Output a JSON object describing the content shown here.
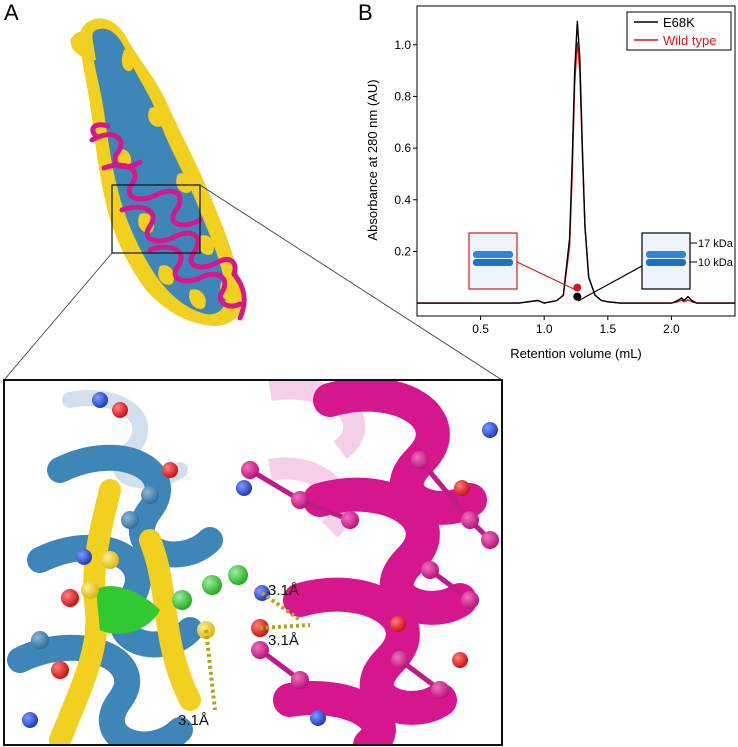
{
  "panels": {
    "a": "A",
    "b": "B"
  },
  "structure_colors": {
    "surface_blue": "#3f86b8",
    "surface_yellow": "#f2d020",
    "helix_magenta": "#d6168c",
    "highlight_green": "#32c832",
    "oxygen_red": "#e01a1a",
    "nitrogen_blue": "#2244cc"
  },
  "distances": [
    "3.1Å",
    "3.1Å",
    "3.1Å"
  ],
  "gel_labels": {
    "upper": "17 kDa",
    "lower": "10 kDa"
  },
  "chart_data": {
    "type": "line",
    "xlabel": "Retention volume (mL)",
    "ylabel": "Absorbance at 280 nm (AU)",
    "xlim": [
      0.0,
      2.5
    ],
    "ylim": [
      -0.05,
      1.15
    ],
    "xticks": [
      "0.5",
      "1.0",
      "1.5",
      "2.0"
    ],
    "xtick_values": [
      0.5,
      1.0,
      1.5,
      2.0
    ],
    "yticks": [
      "0.2",
      "0.4",
      "0.6",
      "0.8",
      "1.0"
    ],
    "ytick_values": [
      0.2,
      0.4,
      0.6,
      0.8,
      1.0
    ],
    "legend_position": "top-right",
    "series": [
      {
        "name": "E68K",
        "color": "#000000",
        "x": [
          0.0,
          0.8,
          0.95,
          1.0,
          1.05,
          1.1,
          1.15,
          1.2,
          1.22,
          1.24,
          1.26,
          1.28,
          1.3,
          1.32,
          1.35,
          1.4,
          1.45,
          1.5,
          1.6,
          1.8,
          2.0,
          2.05,
          2.08,
          2.1,
          2.13,
          2.16,
          2.2,
          2.5
        ],
        "y": [
          0.0,
          0.0,
          0.01,
          0.0,
          0.005,
          0.01,
          0.03,
          0.25,
          0.55,
          0.9,
          1.09,
          0.95,
          0.6,
          0.3,
          0.1,
          0.03,
          0.01,
          0.005,
          0.0,
          0.0,
          0.0,
          0.01,
          0.02,
          0.01,
          0.025,
          0.01,
          0.0,
          0.0
        ]
      },
      {
        "name": "Wild type",
        "color": "#d41a1a",
        "x": [
          0.0,
          0.8,
          0.95,
          1.0,
          1.05,
          1.1,
          1.15,
          1.2,
          1.22,
          1.24,
          1.26,
          1.28,
          1.3,
          1.32,
          1.35,
          1.4,
          1.45,
          1.5,
          1.6,
          1.8,
          2.0,
          2.05,
          2.08,
          2.1,
          2.13,
          2.16,
          2.2,
          2.5
        ],
        "y": [
          0.0,
          0.0,
          0.01,
          0.0,
          0.005,
          0.01,
          0.03,
          0.22,
          0.5,
          0.85,
          1.01,
          0.9,
          0.58,
          0.3,
          0.1,
          0.03,
          0.01,
          0.005,
          0.0,
          0.0,
          0.0,
          0.005,
          0.012,
          0.005,
          0.012,
          0.005,
          0.0,
          0.0
        ]
      }
    ],
    "markers": [
      {
        "series": "Wild type",
        "x": 1.26,
        "y": 0.06,
        "color": "#d41a1a"
      },
      {
        "series": "E68K",
        "x": 1.26,
        "y": 0.025,
        "color": "#000000"
      }
    ]
  }
}
